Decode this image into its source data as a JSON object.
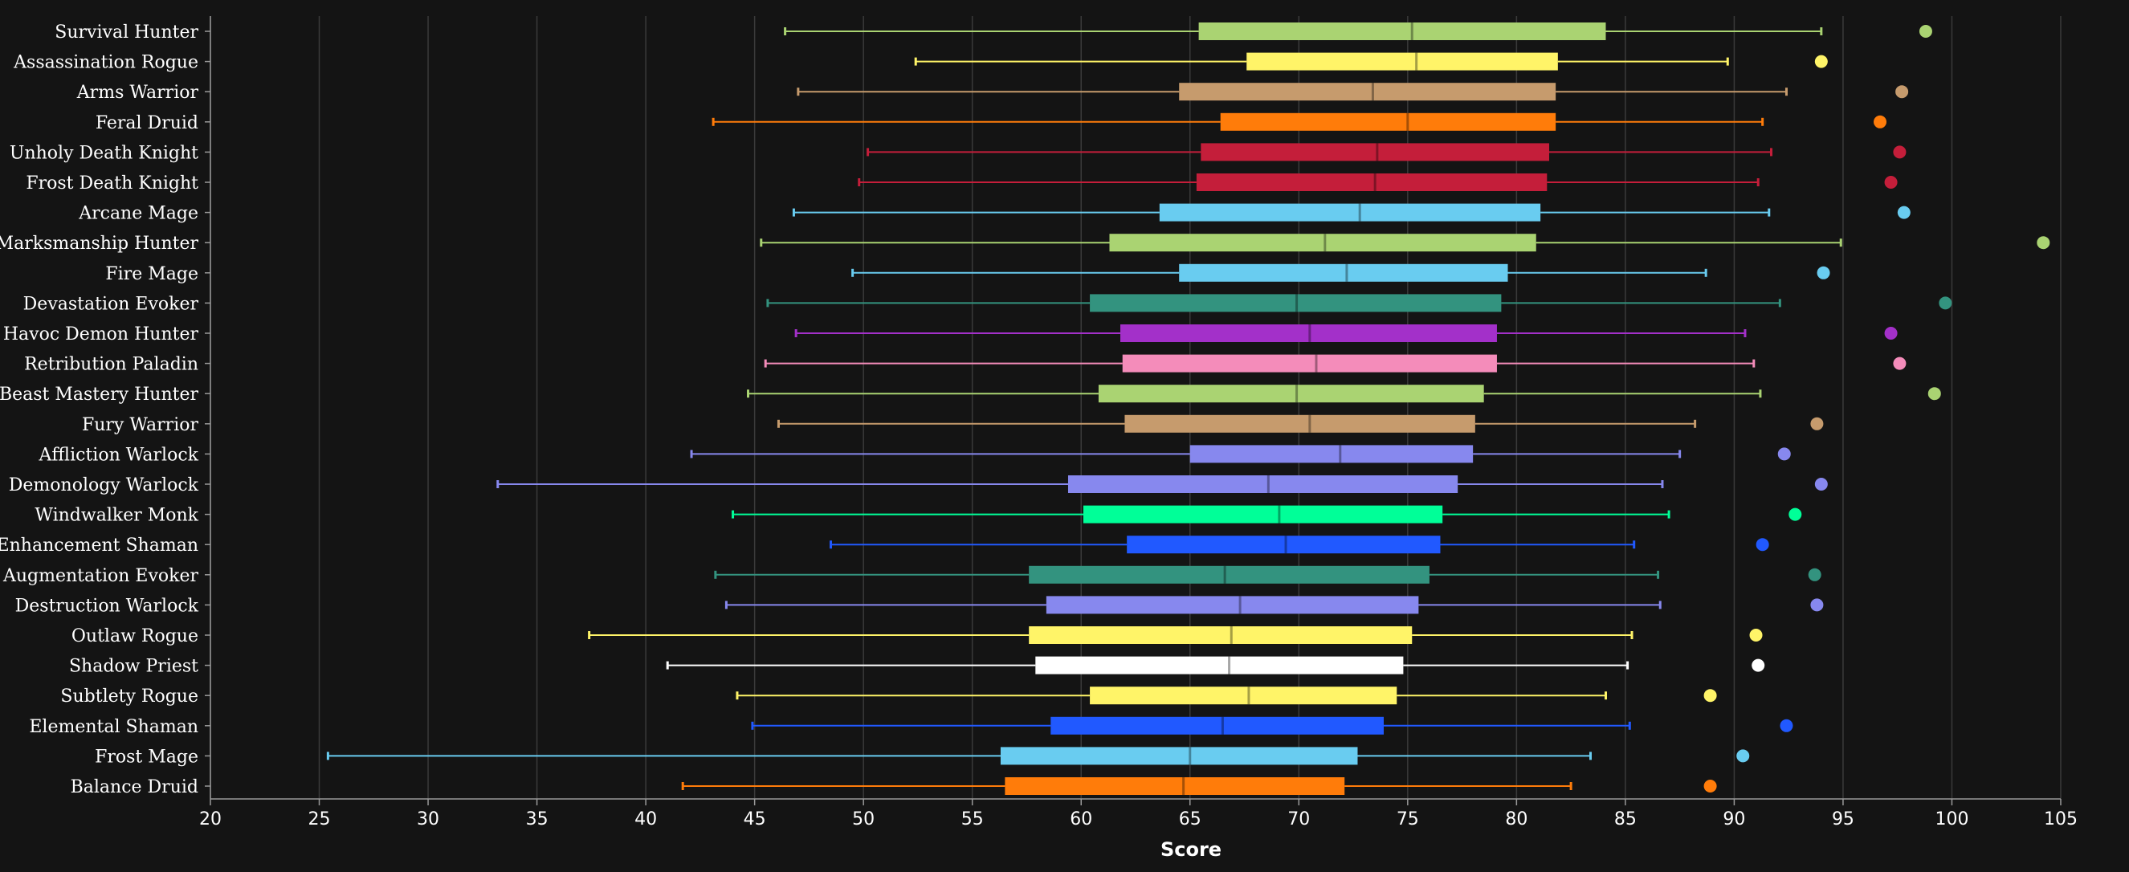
{
  "chart_data": {
    "type": "box",
    "xlabel": "Score",
    "xlim": [
      20,
      105
    ],
    "xticks": [
      20,
      25,
      30,
      35,
      40,
      45,
      50,
      55,
      60,
      65,
      70,
      75,
      80,
      85,
      90,
      95,
      100,
      105
    ],
    "grid": "vertical",
    "series": [
      {
        "name": "Survival Hunter",
        "color": "#AAD372",
        "min": 46.4,
        "q1": 65.4,
        "median": 75.2,
        "q3": 84.1,
        "max": 94.0,
        "outlier": 98.8
      },
      {
        "name": "Assassination Rogue",
        "color": "#FFF468",
        "min": 52.4,
        "q1": 67.6,
        "median": 75.4,
        "q3": 81.9,
        "max": 89.7,
        "outlier": 94.0
      },
      {
        "name": "Arms Warrior",
        "color": "#C69B6D",
        "min": 47.0,
        "q1": 64.5,
        "median": 73.4,
        "q3": 81.8,
        "max": 92.4,
        "outlier": 97.7
      },
      {
        "name": "Feral Druid",
        "color": "#FF7C0A",
        "min": 43.1,
        "q1": 66.4,
        "median": 75.0,
        "q3": 81.8,
        "max": 91.3,
        "outlier": 96.7
      },
      {
        "name": "Unholy Death Knight",
        "color": "#C41E3A",
        "min": 50.2,
        "q1": 65.5,
        "median": 73.6,
        "q3": 81.5,
        "max": 91.7,
        "outlier": 97.6
      },
      {
        "name": "Frost Death Knight",
        "color": "#C41E3A",
        "min": 49.8,
        "q1": 65.3,
        "median": 73.5,
        "q3": 81.4,
        "max": 91.1,
        "outlier": 97.2
      },
      {
        "name": "Arcane Mage",
        "color": "#69CCF0",
        "min": 46.8,
        "q1": 63.6,
        "median": 72.8,
        "q3": 81.1,
        "max": 91.6,
        "outlier": 97.8
      },
      {
        "name": "Marksmanship Hunter",
        "color": "#AAD372",
        "min": 45.3,
        "q1": 61.3,
        "median": 71.2,
        "q3": 80.9,
        "max": 94.9,
        "outlier": 104.2
      },
      {
        "name": "Fire Mage",
        "color": "#69CCF0",
        "min": 49.5,
        "q1": 64.5,
        "median": 72.2,
        "q3": 79.6,
        "max": 88.7,
        "outlier": 94.1
      },
      {
        "name": "Devastation Evoker",
        "color": "#33937F",
        "min": 45.6,
        "q1": 60.4,
        "median": 69.9,
        "q3": 79.3,
        "max": 92.1,
        "outlier": 99.7
      },
      {
        "name": "Havoc Demon Hunter",
        "color": "#A330C9",
        "min": 46.9,
        "q1": 61.8,
        "median": 70.5,
        "q3": 79.1,
        "max": 90.5,
        "outlier": 97.2
      },
      {
        "name": "Retribution Paladin",
        "color": "#F48CBA",
        "min": 45.5,
        "q1": 61.9,
        "median": 70.8,
        "q3": 79.1,
        "max": 90.9,
        "outlier": 97.6
      },
      {
        "name": "Beast Mastery Hunter",
        "color": "#AAD372",
        "min": 44.7,
        "q1": 60.8,
        "median": 69.9,
        "q3": 78.5,
        "max": 91.2,
        "outlier": 99.2
      },
      {
        "name": "Fury Warrior",
        "color": "#C69B6D",
        "min": 46.1,
        "q1": 62.0,
        "median": 70.5,
        "q3": 78.1,
        "max": 88.2,
        "outlier": 93.8
      },
      {
        "name": "Affliction Warlock",
        "color": "#8788EE",
        "min": 42.1,
        "q1": 65.0,
        "median": 71.9,
        "q3": 78.0,
        "max": 87.5,
        "outlier": 92.3
      },
      {
        "name": "Demonology Warlock",
        "color": "#8788EE",
        "min": 33.2,
        "q1": 59.4,
        "median": 68.6,
        "q3": 77.3,
        "max": 86.7,
        "outlier": 94.0
      },
      {
        "name": "Windwalker Monk",
        "color": "#00FF98",
        "min": 44.0,
        "q1": 60.1,
        "median": 69.1,
        "q3": 76.6,
        "max": 87.0,
        "outlier": 92.8
      },
      {
        "name": "Enhancement Shaman",
        "color": "#2159FF",
        "min": 48.5,
        "q1": 62.1,
        "median": 69.4,
        "q3": 76.5,
        "max": 85.4,
        "outlier": 91.3
      },
      {
        "name": "Augmentation Evoker",
        "color": "#33937F",
        "min": 43.2,
        "q1": 57.6,
        "median": 66.6,
        "q3": 76.0,
        "max": 86.5,
        "outlier": 93.7
      },
      {
        "name": "Destruction Warlock",
        "color": "#8788EE",
        "min": 43.7,
        "q1": 58.4,
        "median": 67.3,
        "q3": 75.5,
        "max": 86.6,
        "outlier": 93.8
      },
      {
        "name": "Outlaw Rogue",
        "color": "#FFF468",
        "min": 37.4,
        "q1": 57.6,
        "median": 66.9,
        "q3": 75.2,
        "max": 85.3,
        "outlier": 91.0
      },
      {
        "name": "Shadow Priest",
        "color": "#FFFFFF",
        "min": 41.0,
        "q1": 57.9,
        "median": 66.8,
        "q3": 74.8,
        "max": 85.1,
        "outlier": 91.1
      },
      {
        "name": "Subtlety Rogue",
        "color": "#FFF468",
        "min": 44.2,
        "q1": 60.4,
        "median": 67.7,
        "q3": 74.5,
        "max": 84.1,
        "outlier": 88.9
      },
      {
        "name": "Elemental Shaman",
        "color": "#2159FF",
        "min": 44.9,
        "q1": 58.6,
        "median": 66.5,
        "q3": 73.9,
        "max": 85.2,
        "outlier": 92.4
      },
      {
        "name": "Frost Mage",
        "color": "#69CCF0",
        "min": 25.4,
        "q1": 56.3,
        "median": 65.0,
        "q3": 72.7,
        "max": 83.4,
        "outlier": 90.4
      },
      {
        "name": "Balance Druid",
        "color": "#FF7C0A",
        "min": 41.7,
        "q1": 56.5,
        "median": 64.7,
        "q3": 72.1,
        "max": 82.5,
        "outlier": 88.9
      }
    ]
  }
}
